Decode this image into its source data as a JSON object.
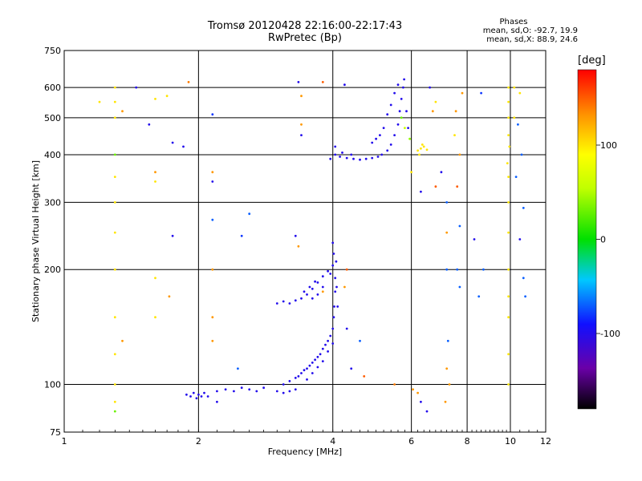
{
  "chart_data": {
    "type": "scatter",
    "title": "Tromsø 20120428 22:16:00-22:17:43",
    "subtitle": "RwPretec (Bp)",
    "xlabel": "Frequency [MHz]",
    "ylabel": "Stationary phase Virtual Height [km]",
    "x_scale": "log",
    "y_scale": "log",
    "xlim": [
      1,
      12
    ],
    "ylim": [
      75,
      750
    ],
    "x_ticks": [
      "1",
      "2",
      "4",
      "6",
      "8",
      "10",
      "12"
    ],
    "x_tick_values": [
      1,
      2,
      4,
      6,
      8,
      10,
      12
    ],
    "y_ticks": [
      "75",
      "100",
      "200",
      "300",
      "400",
      "500",
      "600",
      "750"
    ],
    "y_tick_values": [
      75,
      100,
      200,
      300,
      400,
      500,
      600,
      750
    ],
    "grid": true,
    "phase_stats": {
      "header": "Phases",
      "o_line": "mean, sd,O: -92.7, 19.9",
      "x_line": "mean, sd,X:  88.9, 24.6"
    },
    "colorbar": {
      "label": "[deg]",
      "ticks": [
        "100",
        "0",
        "-100"
      ],
      "tick_values": [
        100,
        0,
        -100
      ],
      "range": [
        -180,
        180
      ]
    },
    "series": [
      {
        "values": [
          [
            1.88,
            94,
            -100
          ],
          [
            1.92,
            93,
            -100
          ],
          [
            1.95,
            95,
            -100
          ],
          [
            1.98,
            92,
            -100
          ],
          [
            2.0,
            94,
            -100
          ],
          [
            2.03,
            93,
            -100
          ],
          [
            2.06,
            95,
            -100
          ],
          [
            2.1,
            93,
            -100
          ],
          [
            2.2,
            96,
            -100
          ],
          [
            2.3,
            97,
            -100
          ],
          [
            2.4,
            96,
            -100
          ],
          [
            2.5,
            98,
            -100
          ],
          [
            2.6,
            97,
            -100
          ],
          [
            2.7,
            96,
            -100
          ],
          [
            2.8,
            98,
            -100
          ],
          [
            3.0,
            96,
            -100
          ],
          [
            3.1,
            95,
            -100
          ],
          [
            3.2,
            96,
            -100
          ],
          [
            3.3,
            97,
            -100
          ],
          [
            3.1,
            100,
            -100
          ],
          [
            3.2,
            102,
            -100
          ],
          [
            3.3,
            104,
            -100
          ],
          [
            3.4,
            107,
            -100
          ],
          [
            3.5,
            110,
            -100
          ],
          [
            3.6,
            114,
            -100
          ],
          [
            3.7,
            118,
            -100
          ],
          [
            3.8,
            124,
            -100
          ],
          [
            3.9,
            130,
            -100
          ],
          [
            4.0,
            140,
            -100
          ],
          [
            3.35,
            105,
            -100
          ],
          [
            3.45,
            109,
            -100
          ],
          [
            3.55,
            112,
            -100
          ],
          [
            3.65,
            116,
            -100
          ],
          [
            3.75,
            120,
            -100
          ],
          [
            3.85,
            127,
            -100
          ],
          [
            3.95,
            134,
            -100
          ],
          [
            3.5,
            103,
            -100
          ],
          [
            3.6,
            107,
            -100
          ],
          [
            3.7,
            111,
            -100
          ],
          [
            3.8,
            115,
            -100
          ],
          [
            3.9,
            122,
            -100
          ],
          [
            4.0,
            128,
            -100
          ],
          [
            4.02,
            150,
            -100
          ],
          [
            4.03,
            160,
            -100
          ],
          [
            4.05,
            175,
            -100
          ],
          [
            4.05,
            190,
            -100
          ],
          [
            4.0,
            205,
            -100
          ],
          [
            4.02,
            220,
            -100
          ],
          [
            4.0,
            235,
            -100
          ],
          [
            3.95,
            195,
            -100
          ],
          [
            4.07,
            210,
            -100
          ],
          [
            4.08,
            180,
            -100
          ],
          [
            4.1,
            160,
            -100
          ],
          [
            3.0,
            163,
            -100
          ],
          [
            3.1,
            165,
            -100
          ],
          [
            3.2,
            163,
            -100
          ],
          [
            3.3,
            166,
            -100
          ],
          [
            3.4,
            168,
            -100
          ],
          [
            3.5,
            172,
            -100
          ],
          [
            3.6,
            178,
            -100
          ],
          [
            3.7,
            185,
            -100
          ],
          [
            3.8,
            192,
            -100
          ],
          [
            3.9,
            198,
            -100
          ],
          [
            3.45,
            175,
            -100
          ],
          [
            3.55,
            180,
            -100
          ],
          [
            3.65,
            186,
            -100
          ],
          [
            3.6,
            168,
            -100
          ],
          [
            3.7,
            172,
            -100
          ],
          [
            3.8,
            180,
            -100
          ],
          [
            3.95,
            390,
            -100
          ],
          [
            4.05,
            400,
            -100
          ],
          [
            4.15,
            395,
            -100
          ],
          [
            4.3,
            392,
            -100
          ],
          [
            4.45,
            390,
            -100
          ],
          [
            4.6,
            388,
            -100
          ],
          [
            4.75,
            390,
            -100
          ],
          [
            4.9,
            392,
            -100
          ],
          [
            5.05,
            395,
            -100
          ],
          [
            5.15,
            400,
            -100
          ],
          [
            5.3,
            410,
            -100
          ],
          [
            5.4,
            425,
            -100
          ],
          [
            5.5,
            450,
            -100
          ],
          [
            5.6,
            480,
            -100
          ],
          [
            5.65,
            520,
            -100
          ],
          [
            5.7,
            560,
            -100
          ],
          [
            5.75,
            600,
            -100
          ],
          [
            5.78,
            630,
            -100
          ],
          [
            5.6,
            610,
            -100
          ],
          [
            5.5,
            580,
            -100
          ],
          [
            5.4,
            540,
            -100
          ],
          [
            5.3,
            510,
            -100
          ],
          [
            5.2,
            470,
            -100
          ],
          [
            5.1,
            450,
            -100
          ],
          [
            5.0,
            440,
            -100
          ],
          [
            4.9,
            430,
            -100
          ],
          [
            5.85,
            520,
            -100
          ],
          [
            5.9,
            470,
            -100
          ],
          [
            4.05,
            420,
            -100
          ],
          [
            4.2,
            405,
            -100
          ],
          [
            4.4,
            400,
            -100
          ],
          [
            6.2,
            410,
            100
          ],
          [
            6.3,
            415,
            100
          ],
          [
            6.4,
            420,
            100
          ],
          [
            6.5,
            412,
            100
          ],
          [
            6.25,
            400,
            100
          ],
          [
            6.35,
            425,
            100
          ],
          [
            5.95,
            440,
            40
          ],
          [
            5.8,
            470,
            60
          ],
          [
            5.7,
            500,
            30
          ],
          [
            9.9,
            300,
            100
          ],
          [
            9.9,
            350,
            100
          ],
          [
            9.9,
            450,
            100
          ],
          [
            9.9,
            500,
            100
          ],
          [
            9.9,
            550,
            100
          ],
          [
            9.9,
            600,
            100
          ],
          [
            9.85,
            380,
            100
          ],
          [
            9.95,
            420,
            100
          ],
          [
            9.9,
            250,
            100
          ],
          [
            9.9,
            200,
            100
          ],
          [
            9.9,
            170,
            100
          ],
          [
            9.9,
            150,
            100
          ],
          [
            9.9,
            120,
            100
          ],
          [
            9.9,
            100,
            100
          ],
          [
            1.3,
            500,
            100
          ],
          [
            1.3,
            550,
            100
          ],
          [
            1.3,
            600,
            100
          ],
          [
            1.3,
            400,
            30
          ],
          [
            1.3,
            350,
            100
          ],
          [
            1.3,
            300,
            100
          ],
          [
            1.3,
            250,
            100
          ],
          [
            1.3,
            200,
            100
          ],
          [
            1.3,
            150,
            100
          ],
          [
            1.3,
            120,
            100
          ],
          [
            1.3,
            100,
            100
          ],
          [
            1.3,
            90,
            100
          ],
          [
            1.3,
            85,
            30
          ],
          [
            1.35,
            520,
            130
          ],
          [
            1.35,
            130,
            130
          ],
          [
            1.2,
            550,
            100
          ],
          [
            1.6,
            560,
            100
          ],
          [
            1.6,
            360,
            130
          ],
          [
            1.6,
            340,
            100
          ],
          [
            1.6,
            150,
            100
          ],
          [
            1.6,
            190,
            100
          ],
          [
            1.7,
            570,
            100
          ],
          [
            1.72,
            170,
            130
          ],
          [
            1.45,
            600,
            -100
          ],
          [
            1.55,
            480,
            -100
          ],
          [
            1.75,
            430,
            -100
          ],
          [
            1.85,
            420,
            -100
          ],
          [
            1.75,
            245,
            -100
          ],
          [
            1.9,
            620,
            140
          ],
          [
            2.15,
            510,
            -80
          ],
          [
            2.15,
            360,
            130
          ],
          [
            2.15,
            340,
            -100
          ],
          [
            2.15,
            270,
            -70
          ],
          [
            2.15,
            200,
            130
          ],
          [
            2.15,
            150,
            130
          ],
          [
            2.15,
            130,
            130
          ],
          [
            2.2,
            90,
            -100
          ],
          [
            2.45,
            110,
            -70
          ],
          [
            2.5,
            245,
            -80
          ],
          [
            2.6,
            280,
            -70
          ],
          [
            3.35,
            620,
            -100
          ],
          [
            3.4,
            570,
            130
          ],
          [
            3.4,
            480,
            130
          ],
          [
            3.4,
            450,
            -100
          ],
          [
            3.3,
            245,
            -100
          ],
          [
            3.35,
            230,
            130
          ],
          [
            3.8,
            620,
            150
          ],
          [
            3.8,
            175,
            130
          ],
          [
            4.25,
            610,
            -100
          ],
          [
            4.3,
            200,
            150
          ],
          [
            4.25,
            180,
            130
          ],
          [
            4.3,
            140,
            -100
          ],
          [
            4.6,
            130,
            -70
          ],
          [
            4.4,
            110,
            -100
          ],
          [
            4.7,
            105,
            150
          ],
          [
            6.6,
            600,
            -100
          ],
          [
            6.8,
            550,
            100
          ],
          [
            6.7,
            520,
            130
          ],
          [
            6.0,
            360,
            100
          ],
          [
            6.3,
            320,
            -100
          ],
          [
            6.8,
            330,
            150
          ],
          [
            7.0,
            360,
            -100
          ],
          [
            7.2,
            300,
            -70
          ],
          [
            7.2,
            250,
            130
          ],
          [
            7.2,
            200,
            -70
          ],
          [
            7.25,
            130,
            -70
          ],
          [
            7.2,
            110,
            130
          ],
          [
            7.3,
            100,
            130
          ],
          [
            7.15,
            90,
            130
          ],
          [
            7.5,
            450,
            100
          ],
          [
            7.6,
            330,
            150
          ],
          [
            7.7,
            260,
            -70
          ],
          [
            7.6,
            200,
            -70
          ],
          [
            7.7,
            180,
            -70
          ],
          [
            7.55,
            520,
            130
          ],
          [
            7.8,
            580,
            130
          ],
          [
            7.7,
            400,
            130
          ],
          [
            8.3,
            240,
            -100
          ],
          [
            8.5,
            170,
            -70
          ],
          [
            8.7,
            200,
            -70
          ],
          [
            8.6,
            580,
            -80
          ],
          [
            10.2,
            600,
            100
          ],
          [
            10.5,
            580,
            100
          ],
          [
            10.6,
            400,
            -70
          ],
          [
            10.7,
            290,
            -70
          ],
          [
            10.5,
            240,
            -100
          ],
          [
            10.7,
            190,
            -70
          ],
          [
            10.8,
            170,
            -70
          ],
          [
            10.4,
            480,
            -70
          ],
          [
            10.2,
            500,
            100
          ],
          [
            6.2,
            95,
            130
          ],
          [
            6.3,
            90,
            -100
          ],
          [
            6.5,
            85,
            -100
          ],
          [
            5.5,
            100,
            140
          ],
          [
            6.05,
            97,
            130
          ],
          [
            10.3,
            350,
            -70
          ]
        ]
      }
    ]
  }
}
